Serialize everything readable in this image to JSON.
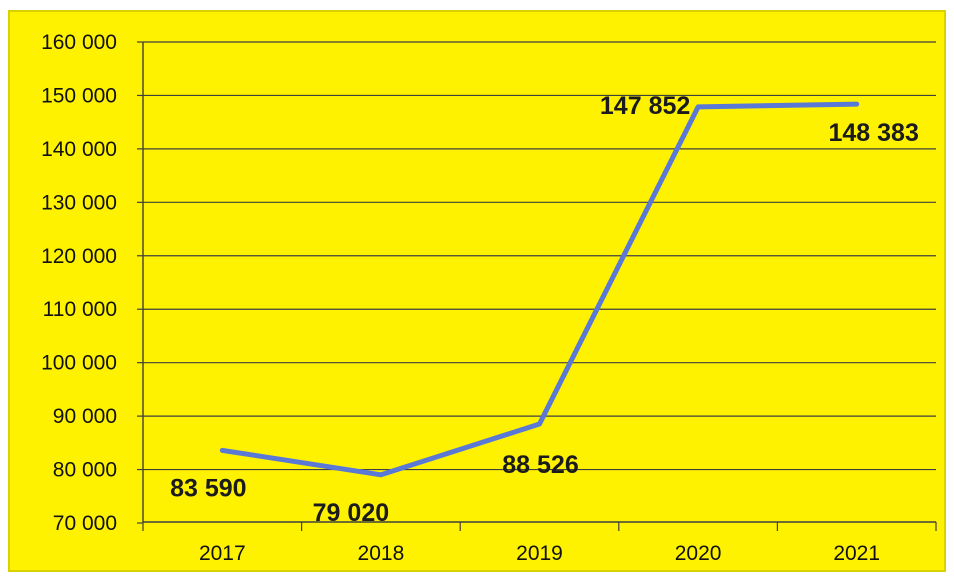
{
  "colors": {
    "background": "#fff200",
    "line": "#5a78d6",
    "grid": "#3f3f3f",
    "text": "#111111"
  },
  "chart_data": {
    "type": "line",
    "title": "",
    "xlabel": "",
    "ylabel": "",
    "categories": [
      "2017",
      "2018",
      "2019",
      "2020",
      "2021"
    ],
    "series": [
      {
        "values": [
          83590,
          79020,
          88526,
          147852,
          148383
        ]
      }
    ],
    "data_labels": [
      "83 590",
      "79 020",
      "88 526",
      "147 852",
      "148 383"
    ],
    "y_ticks": [
      70000,
      80000,
      90000,
      100000,
      110000,
      120000,
      130000,
      140000,
      150000,
      160000
    ],
    "y_tick_labels": [
      "70 000",
      "80 000",
      "90 000",
      "100 000",
      "110 000",
      "120 000",
      "130 000",
      "140 000",
      "150 000",
      "160 000"
    ],
    "ylim": [
      70000,
      160000
    ],
    "grid": true,
    "legend": "none"
  }
}
